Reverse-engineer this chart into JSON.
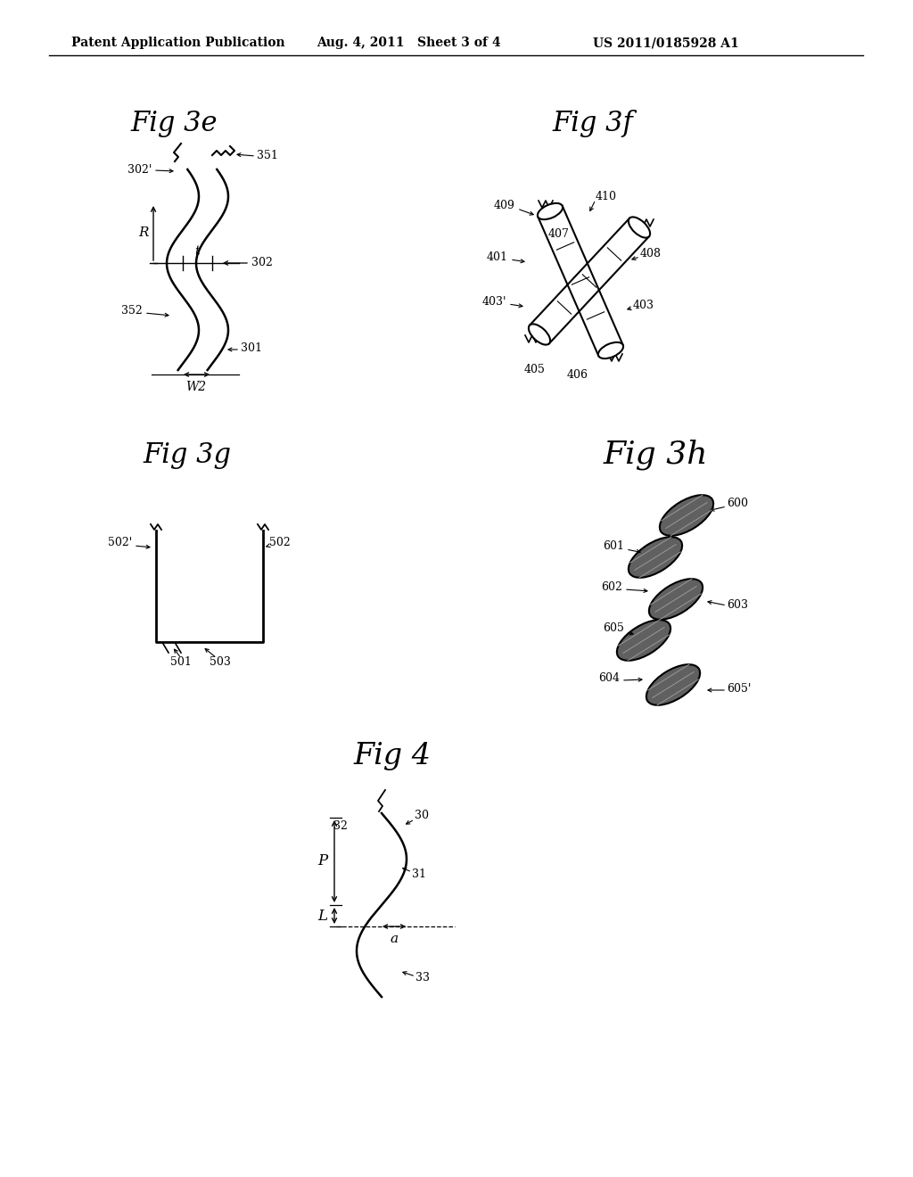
{
  "background_color": "#ffffff",
  "header_left": "Patent Application Publication",
  "header_mid": "Aug. 4, 2011   Sheet 3 of 4",
  "header_right": "US 2011/0185928 A1",
  "fig3e_title": "Fig 3e",
  "fig3f_title": "Fig 3f",
  "fig3g_title": "Fig 3g",
  "fig3h_title": "Fig 3h",
  "fig4_title": "Fig 4",
  "line_color": "#000000",
  "text_color": "#000000",
  "ellipse_fill": "#606060"
}
